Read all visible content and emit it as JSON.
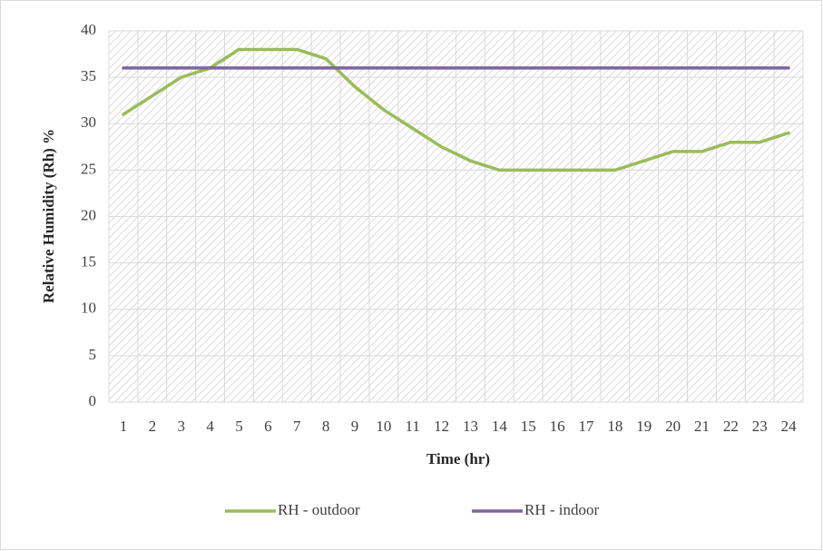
{
  "chart_data": {
    "type": "line",
    "x_label": "Time (hr)",
    "y_label": "Relative Humidity (Rh) %",
    "categories": [
      "1",
      "2",
      "3",
      "4",
      "5",
      "6",
      "7",
      "8",
      "9",
      "10",
      "11",
      "12",
      "13",
      "14",
      "15",
      "16",
      "17",
      "18",
      "19",
      "20",
      "21",
      "22",
      "23",
      "24"
    ],
    "series": [
      {
        "name": "RH - outdoor",
        "color": "#9bbb59",
        "values": [
          31,
          33,
          35,
          36,
          38,
          38,
          38,
          37,
          34,
          31.5,
          29.5,
          27.5,
          26,
          25,
          25,
          25,
          25,
          25,
          26,
          27,
          27,
          28,
          28,
          29
        ]
      },
      {
        "name": "RH - indoor",
        "color": "#8064a2",
        "values": [
          36,
          36,
          36,
          36,
          36,
          36,
          36,
          36,
          36,
          36,
          36,
          36,
          36,
          36,
          36,
          36,
          36,
          36,
          36,
          36,
          36,
          36,
          36,
          36
        ]
      }
    ],
    "ylim": [
      0,
      40
    ],
    "yticks": [
      0,
      5,
      10,
      15,
      20,
      25,
      30,
      35,
      40
    ],
    "grid": true,
    "legend": "bottom"
  }
}
